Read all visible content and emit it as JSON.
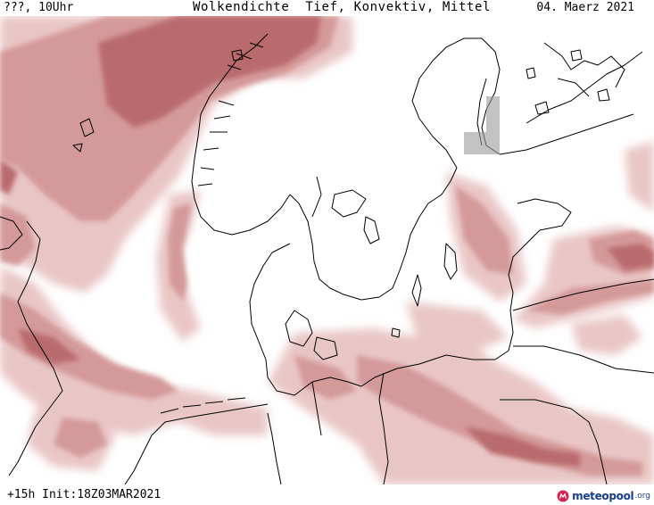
{
  "header": {
    "left": "???, 10Uhr",
    "center": "Wolkendichte  Tief, Konvektiv, Mittel",
    "right": "04. Maerz 2021"
  },
  "footer": {
    "run": "+15h Init:18Z03MAR2021",
    "logo_text": "meteopool",
    "logo_suffix": ".org"
  },
  "colors": {
    "cloud_light": "#e9c6c6",
    "cloud_mid": "#d49a9a",
    "cloud_dark": "#b96b6d",
    "coast": "#000000",
    "logo": "#1a3e8c",
    "logo_icon": "#d02552"
  },
  "icons": [
    "meteopool-logo-icon"
  ]
}
